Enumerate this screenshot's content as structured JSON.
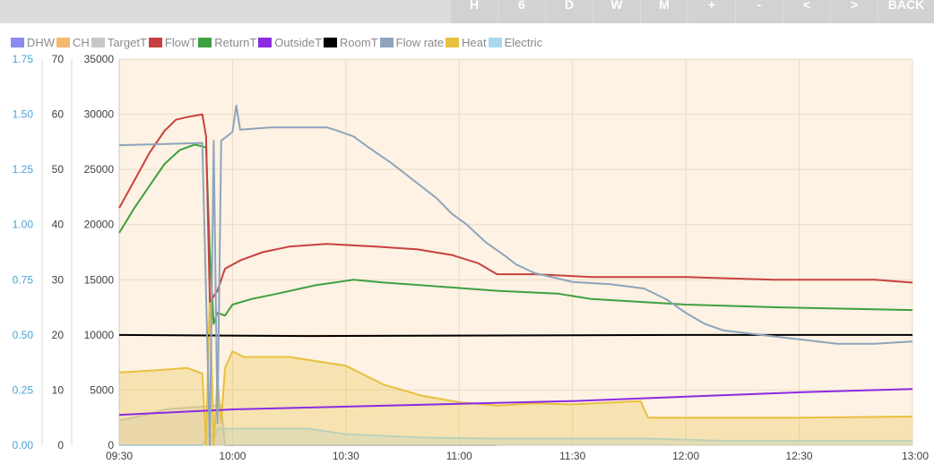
{
  "toolbar": {
    "buttons": [
      "H",
      "6",
      "D",
      "W",
      "M",
      "+",
      "-",
      "<",
      ">",
      "BACK"
    ]
  },
  "chart_data": {
    "type": "line",
    "legend_position": "top-left",
    "grid": true,
    "xlim": [
      "09:30",
      "13:00"
    ],
    "x_ticks": [
      "09:30",
      "10:00",
      "10:30",
      "11:00",
      "11:30",
      "12:00",
      "12:30",
      "13:00"
    ],
    "y_axes": [
      {
        "id": "flow",
        "ylim": [
          0,
          1.75
        ],
        "ticks": [
          "0.00",
          "0.25",
          "0.50",
          "0.75",
          "1.00",
          "1.25",
          "1.50",
          "1.75"
        ],
        "color": "#4aa3d6"
      },
      {
        "id": "temp",
        "ylim": [
          0,
          70
        ],
        "ticks": [
          "0",
          "10",
          "20",
          "30",
          "40",
          "50",
          "60",
          "70"
        ]
      },
      {
        "id": "power",
        "ylim": [
          0,
          35000
        ],
        "ticks": [
          "0",
          "5000",
          "10000",
          "15000",
          "20000",
          "25000",
          "30000",
          "35000"
        ]
      }
    ],
    "series": [
      {
        "name": "DHW",
        "color": "#8c8cf0",
        "axis": "temp",
        "values": []
      },
      {
        "name": "CH",
        "color": "#f5b870",
        "axis": "temp",
        "values": []
      },
      {
        "name": "TargetT",
        "color": "#c8c8c8",
        "axis": "temp",
        "fill": true,
        "values": [
          [
            0,
            4.5
          ],
          [
            7,
            5.5
          ],
          [
            12,
            6.5
          ],
          [
            22,
            7
          ],
          [
            27,
            7.3
          ],
          [
            28,
            0
          ],
          [
            100,
            0
          ]
        ]
      },
      {
        "name": "FlowT",
        "color": "#c94040",
        "axis": "temp",
        "values": [
          [
            0,
            43
          ],
          [
            4,
            48
          ],
          [
            8,
            53
          ],
          [
            12,
            57
          ],
          [
            15,
            59
          ],
          [
            18,
            59.5
          ],
          [
            22,
            60
          ],
          [
            23,
            56
          ],
          [
            24,
            26
          ],
          [
            25,
            27
          ],
          [
            26,
            28
          ],
          [
            28,
            32
          ],
          [
            32,
            33.5
          ],
          [
            38,
            35
          ],
          [
            45,
            36
          ],
          [
            55,
            36.5
          ],
          [
            68,
            36
          ],
          [
            79,
            35.5
          ],
          [
            88,
            34.5
          ],
          [
            95,
            33
          ],
          [
            100,
            31
          ],
          [
            110,
            31
          ],
          [
            125,
            30.5
          ],
          [
            150,
            30.5
          ],
          [
            173,
            30
          ],
          [
            200,
            30
          ],
          [
            210,
            29.5
          ]
        ]
      },
      {
        "name": "ReturnT",
        "color": "#3fa040",
        "axis": "temp",
        "values": [
          [
            0,
            38.5
          ],
          [
            4,
            43
          ],
          [
            8,
            47
          ],
          [
            12,
            51
          ],
          [
            16,
            53.5
          ],
          [
            20,
            54.5
          ],
          [
            23,
            54
          ],
          [
            24,
            35
          ],
          [
            25,
            22
          ],
          [
            26,
            24
          ],
          [
            28,
            23.5
          ],
          [
            30,
            25.5
          ],
          [
            35,
            26.5
          ],
          [
            42,
            27.5
          ],
          [
            52,
            29
          ],
          [
            62,
            30
          ],
          [
            70,
            29.5
          ],
          [
            80,
            29
          ],
          [
            90,
            28.5
          ],
          [
            100,
            28
          ],
          [
            116,
            27.5
          ],
          [
            125,
            26.5
          ],
          [
            150,
            25.5
          ],
          [
            175,
            25
          ],
          [
            210,
            24.5
          ]
        ]
      },
      {
        "name": "OutsideT",
        "color": "#8a2be2",
        "axis": "temp",
        "values": [
          [
            0,
            5.5
          ],
          [
            30,
            6.5
          ],
          [
            60,
            7
          ],
          [
            90,
            7.5
          ],
          [
            120,
            8
          ],
          [
            150,
            8.8
          ],
          [
            180,
            9.6
          ],
          [
            210,
            10.2
          ]
        ]
      },
      {
        "name": "RoomT",
        "color": "#000000",
        "axis": "temp",
        "values": [
          [
            0,
            20
          ],
          [
            50,
            19.8
          ],
          [
            100,
            19.9
          ],
          [
            150,
            20
          ],
          [
            210,
            20
          ]
        ]
      },
      {
        "name": "Flow rate",
        "color": "#8ea4bc",
        "axis": "flow",
        "values": [
          [
            0,
            1.36
          ],
          [
            22,
            1.37
          ],
          [
            24,
            0.0
          ],
          [
            25,
            1.38
          ],
          [
            26,
            0.1
          ],
          [
            27,
            1.38
          ],
          [
            30,
            1.42
          ],
          [
            31,
            1.54
          ],
          [
            32,
            1.43
          ],
          [
            40,
            1.44
          ],
          [
            55,
            1.44
          ],
          [
            57,
            1.43
          ],
          [
            62,
            1.4
          ],
          [
            66,
            1.35
          ],
          [
            72,
            1.28
          ],
          [
            78,
            1.2
          ],
          [
            84,
            1.12
          ],
          [
            88,
            1.05
          ],
          [
            92,
            1.0
          ],
          [
            97,
            0.92
          ],
          [
            102,
            0.86
          ],
          [
            105,
            0.82
          ],
          [
            110,
            0.78
          ],
          [
            120,
            0.74
          ],
          [
            130,
            0.73
          ],
          [
            139,
            0.71
          ],
          [
            145,
            0.66
          ],
          [
            150,
            0.6
          ],
          [
            155,
            0.55
          ],
          [
            160,
            0.52
          ],
          [
            170,
            0.5
          ],
          [
            180,
            0.48
          ],
          [
            190,
            0.46
          ],
          [
            200,
            0.46
          ],
          [
            210,
            0.47
          ]
        ]
      },
      {
        "name": "Heat",
        "color": "#e8c040",
        "axis": "power",
        "fill": true,
        "values": [
          [
            0,
            6600
          ],
          [
            10,
            6800
          ],
          [
            18,
            7000
          ],
          [
            22,
            6500
          ],
          [
            23,
            0
          ],
          [
            24,
            14000
          ],
          [
            25,
            0
          ],
          [
            26,
            6000
          ],
          [
            27,
            2000
          ],
          [
            28,
            7000
          ],
          [
            30,
            8500
          ],
          [
            33,
            8000
          ],
          [
            45,
            8000
          ],
          [
            60,
            7200
          ],
          [
            70,
            5500
          ],
          [
            80,
            4500
          ],
          [
            90,
            3900
          ],
          [
            100,
            3600
          ],
          [
            110,
            3800
          ],
          [
            120,
            3700
          ],
          [
            138,
            4000
          ],
          [
            140,
            2500
          ],
          [
            160,
            2500
          ],
          [
            180,
            2500
          ],
          [
            210,
            2600
          ]
        ]
      },
      {
        "name": "Electric",
        "color": "#a8d8f0",
        "axis": "power",
        "fill": true,
        "values": [
          [
            0,
            0
          ],
          [
            22,
            0
          ],
          [
            24,
            1200
          ],
          [
            25,
            500
          ],
          [
            26,
            1500
          ],
          [
            30,
            1500
          ],
          [
            50,
            1500
          ],
          [
            60,
            1000
          ],
          [
            80,
            700
          ],
          [
            100,
            600
          ],
          [
            140,
            600
          ],
          [
            160,
            400
          ],
          [
            210,
            400
          ]
        ]
      }
    ]
  }
}
